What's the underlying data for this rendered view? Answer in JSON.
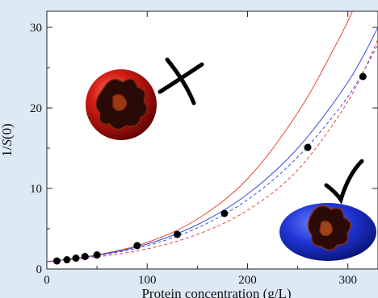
{
  "chart_data": {
    "type": "scatter",
    "title": "",
    "xlabel": "Protein concentration (g/L)",
    "ylabel_prefix": "1/",
    "ylabel_var": "S",
    "ylabel_suffix": "(0)",
    "xlim": [
      0,
      330
    ],
    "ylim": [
      0,
      32
    ],
    "x_ticks": [
      0,
      100,
      200,
      300
    ],
    "y_ticks": [
      0,
      10,
      20,
      30
    ],
    "grid": false,
    "series": [
      {
        "kind": "points",
        "color": "#000000",
        "x": [
          10,
          20,
          29,
          38,
          50,
          90,
          130,
          177,
          260,
          315
        ],
        "y": [
          1.0,
          1.15,
          1.35,
          1.55,
          1.75,
          2.9,
          4.3,
          6.9,
          15.1,
          23.9
        ]
      },
      {
        "kind": "curve",
        "style": "solid",
        "color": "#e8443a",
        "x": [
          0,
          50,
          100,
          150,
          200,
          250,
          290,
          310,
          330
        ],
        "y": [
          0.9,
          1.75,
          3.3,
          6.2,
          11.2,
          19.4,
          28.3,
          33.5,
          39.5
        ]
      },
      {
        "kind": "curve",
        "style": "solid",
        "color": "#3a4dde",
        "x": [
          0,
          50,
          100,
          150,
          200,
          250,
          300,
          330
        ],
        "y": [
          0.9,
          1.7,
          3.1,
          5.5,
          9.3,
          15.0,
          23.2,
          30.0
        ]
      },
      {
        "kind": "curve",
        "style": "dashed",
        "color": "#3a4dde",
        "x": [
          0,
          50,
          100,
          150,
          200,
          250,
          300,
          330
        ],
        "y": [
          0.9,
          1.65,
          2.9,
          5.1,
          8.6,
          13.9,
          21.4,
          27.9
        ]
      },
      {
        "kind": "curve",
        "style": "dashed",
        "color": "#e8443a",
        "x": [
          0,
          50,
          100,
          150,
          200,
          250,
          300,
          330
        ],
        "y": [
          0.9,
          1.5,
          2.5,
          4.3,
          7.3,
          12.3,
          20.8,
          28.5
        ]
      }
    ],
    "illustrations": [
      {
        "shape": "sphere",
        "color": "#c81010",
        "mark": "cross"
      },
      {
        "shape": "ellipsoid",
        "color": "#1f35d6",
        "mark": "check"
      }
    ]
  }
}
